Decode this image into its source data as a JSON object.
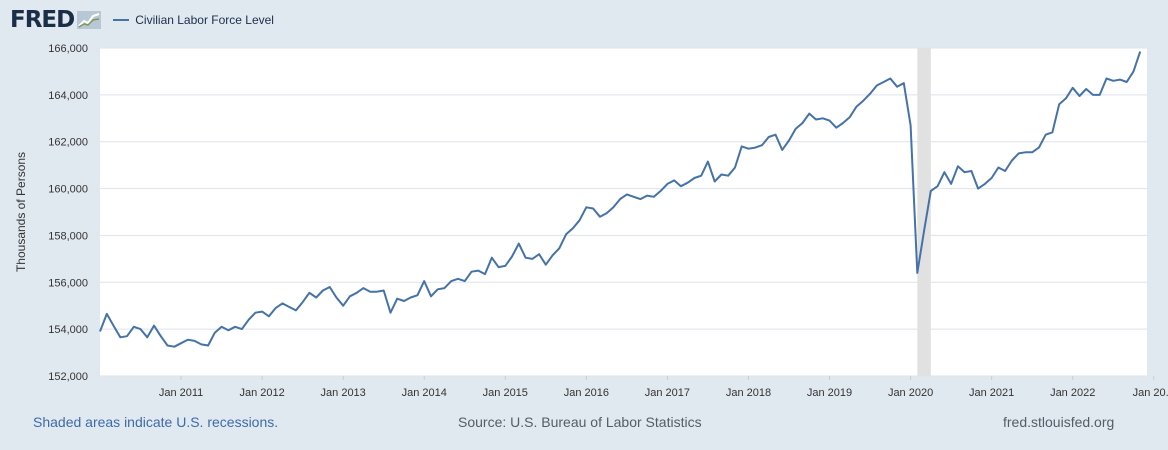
{
  "header": {
    "logo_text": "FRED",
    "legend_label": "Civilian Labor Force Level"
  },
  "footer": {
    "recessions_text": "Shaded areas indicate U.S. recessions.",
    "source_text": "Source: U.S. Bureau of Labor Statistics",
    "link_text": "fred.stlouisfed.org"
  },
  "colors": {
    "background": "#e1e9f0",
    "plot_background": "#ffffff",
    "series": "#4572a7",
    "recession_shading": "#e1e1e1",
    "gridline": "#dde3ea"
  },
  "chart_data": {
    "type": "line",
    "title": "",
    "xlabel": "",
    "ylabel": "Thousands of Persons",
    "ylim": [
      152000,
      166000
    ],
    "yticks": [
      "152,000",
      "154,000",
      "156,000",
      "158,000",
      "160,000",
      "162,000",
      "164,000",
      "166,000"
    ],
    "xticks": [
      "Jan 2011",
      "Jan 2012",
      "Jan 2013",
      "Jan 2014",
      "Jan 2015",
      "Jan 2016",
      "Jan 2017",
      "Jan 2018",
      "Jan 2019",
      "Jan 2020",
      "Jan 2021",
      "Jan 2022",
      "Jan 20..."
    ],
    "x_start": "2010-01",
    "x_end": "2022-12",
    "grid": true,
    "legend": "top-left",
    "recessions": [
      {
        "start": "2020-02",
        "end": "2020-04"
      }
    ],
    "series": [
      {
        "name": "Civilian Labor Force Level",
        "frequency": "monthly",
        "start": "2010-01",
        "values": [
          153900,
          154650,
          154150,
          153650,
          153700,
          154100,
          154000,
          153650,
          154150,
          153700,
          153300,
          153250,
          153400,
          153550,
          153500,
          153350,
          153300,
          153850,
          154100,
          153950,
          154100,
          154000,
          154400,
          154700,
          154750,
          154550,
          154900,
          155100,
          154950,
          154800,
          155150,
          155550,
          155350,
          155650,
          155800,
          155350,
          155000,
          155400,
          155550,
          155750,
          155600,
          155600,
          155650,
          154700,
          155300,
          155200,
          155350,
          155450,
          156050,
          155400,
          155700,
          155750,
          156050,
          156150,
          156050,
          156450,
          156500,
          156350,
          157050,
          156650,
          156700,
          157100,
          157650,
          157050,
          157000,
          157200,
          156750,
          157150,
          157450,
          158050,
          158300,
          158650,
          159200,
          159150,
          158800,
          158950,
          159200,
          159550,
          159750,
          159650,
          159550,
          159700,
          159650,
          159900,
          160200,
          160350,
          160100,
          160250,
          160450,
          160550,
          161150,
          160300,
          160600,
          160550,
          160900,
          161800,
          161700,
          161750,
          161850,
          162200,
          162300,
          161650,
          162050,
          162550,
          162800,
          163200,
          162950,
          163000,
          162900,
          162600,
          162800,
          163050,
          163500,
          163750,
          164050,
          164400,
          164550,
          164700,
          164350,
          164500,
          162700,
          156400,
          158200,
          159900,
          160100,
          160700,
          160200,
          160950,
          160700,
          160750,
          160000,
          160200,
          160450,
          160900,
          160750,
          161200,
          161500,
          161550,
          161550,
          161750,
          162300,
          162400,
          163600,
          163850,
          164300,
          163950,
          164250,
          164000,
          164000,
          164700,
          164600,
          164650,
          164550,
          165000,
          165850
        ]
      }
    ]
  }
}
